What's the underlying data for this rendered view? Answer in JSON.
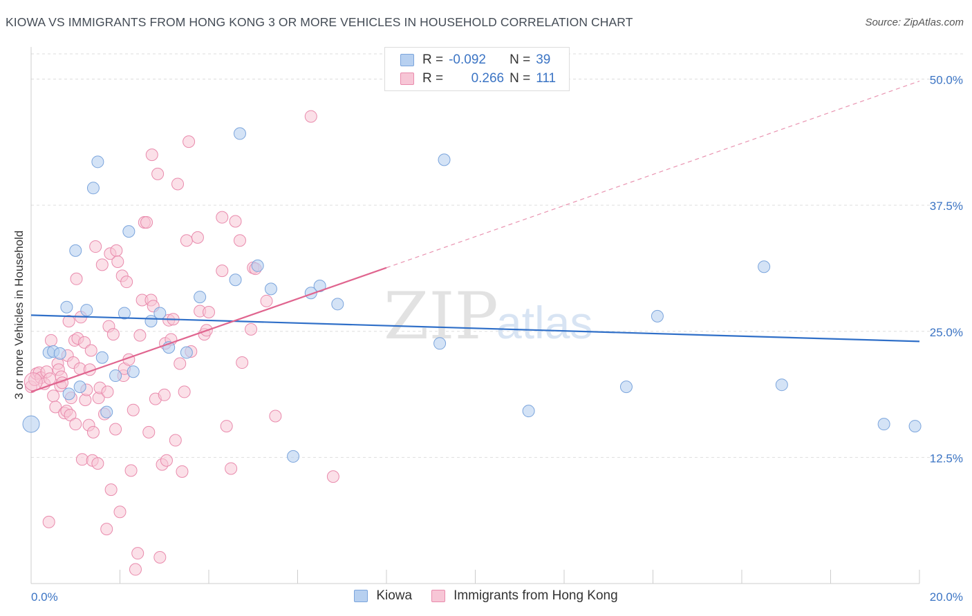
{
  "title": "KIOWA VS IMMIGRANTS FROM HONG KONG 3 OR MORE VEHICLES IN HOUSEHOLD CORRELATION CHART",
  "source": "Source: ZipAtlas.com",
  "watermark": {
    "zip": "ZIP",
    "atlas": "atlas"
  },
  "legend": {
    "r_label": "R =",
    "n_label": "N =",
    "rows": [
      {
        "r": "-0.092",
        "n": "39"
      },
      {
        "r": "0.266",
        "n": "111"
      }
    ]
  },
  "bottom_legend": [
    "Kiowa",
    "Immigrants from Hong Kong"
  ],
  "chart_data": {
    "type": "scatter",
    "title": "KIOWA VS IMMIGRANTS FROM HONG KONG 3 OR MORE VEHICLES IN HOUSEHOLD CORRELATION CHART",
    "xlabel": "",
    "ylabel": "3 or more Vehicles in Household",
    "xlim": [
      0,
      20
    ],
    "ylim": [
      0,
      52.5
    ],
    "x_tick_labels": [
      {
        "value": 0,
        "label": "0.0%"
      },
      {
        "value": 20,
        "label": "20.0%"
      }
    ],
    "y_tick_labels": [
      {
        "value": 12.5,
        "label": "12.5%"
      },
      {
        "value": 25,
        "label": "25.0%"
      },
      {
        "value": 37.5,
        "label": "37.5%"
      },
      {
        "value": 50,
        "label": "50.0%"
      }
    ],
    "x_minor_ticks": [
      0,
      2,
      4,
      6,
      8,
      10,
      12,
      14,
      16,
      18,
      20
    ],
    "grid": true,
    "colors": {
      "kiowa_fill": "#b7d0f0",
      "kiowa_stroke": "#7aa4dc",
      "kiowa_line": "#2f6fc8",
      "hk_fill": "#f7c6d6",
      "hk_stroke": "#e98aac",
      "hk_line": "#e0658f",
      "tick_label": "#3b74c4",
      "grid": "#dddddd"
    },
    "series": [
      {
        "name": "Kiowa",
        "R": -0.092,
        "N": 39,
        "trend": {
          "x0": 0,
          "y0": 26.6,
          "x1": 20,
          "y1": 24.0
        },
        "points": [
          [
            0,
            15.8
          ],
          [
            0.4,
            22.9
          ],
          [
            0.5,
            23.0
          ],
          [
            0.65,
            22.8
          ],
          [
            0.8,
            27.4
          ],
          [
            0.85,
            18.8
          ],
          [
            1.0,
            33.0
          ],
          [
            1.1,
            19.5
          ],
          [
            1.25,
            27.1
          ],
          [
            1.4,
            39.2
          ],
          [
            1.5,
            41.8
          ],
          [
            1.6,
            22.4
          ],
          [
            1.7,
            17.0
          ],
          [
            1.9,
            20.6
          ],
          [
            2.1,
            26.8
          ],
          [
            2.2,
            34.9
          ],
          [
            2.3,
            21.0
          ],
          [
            2.7,
            26.0
          ],
          [
            2.9,
            26.8
          ],
          [
            3.1,
            23.4
          ],
          [
            3.5,
            22.9
          ],
          [
            3.8,
            28.4
          ],
          [
            4.6,
            30.1
          ],
          [
            4.7,
            44.6
          ],
          [
            5.1,
            31.5
          ],
          [
            5.4,
            29.2
          ],
          [
            5.9,
            12.6
          ],
          [
            6.3,
            28.8
          ],
          [
            6.5,
            29.5
          ],
          [
            6.9,
            27.7
          ],
          [
            9.2,
            23.8
          ],
          [
            9.3,
            42.0
          ],
          [
            11.2,
            17.1
          ],
          [
            13.4,
            19.5
          ],
          [
            14.1,
            26.5
          ],
          [
            16.5,
            31.4
          ],
          [
            16.9,
            19.7
          ],
          [
            19.2,
            15.8
          ],
          [
            19.9,
            15.6
          ]
        ]
      },
      {
        "name": "Immigrants from Hong Kong",
        "R": 0.266,
        "N": 111,
        "trend": {
          "x0": 0,
          "y0": 19.0,
          "x1": 8.0,
          "y1": 31.3
        },
        "trend_dashed": {
          "x0": 8.0,
          "y0": 31.3,
          "x1": 20,
          "y1": 49.8
        },
        "points": [
          [
            0,
            19.5
          ],
          [
            0.08,
            20.2
          ],
          [
            0.12,
            20.8
          ],
          [
            0.18,
            20.9
          ],
          [
            0.22,
            20.4
          ],
          [
            0.3,
            19.8
          ],
          [
            0.35,
            21.0
          ],
          [
            0.4,
            6.1
          ],
          [
            0.42,
            20.3
          ],
          [
            0.45,
            24.1
          ],
          [
            0.5,
            18.6
          ],
          [
            0.55,
            17.5
          ],
          [
            0.6,
            21.8
          ],
          [
            0.62,
            21.2
          ],
          [
            0.66,
            19.6
          ],
          [
            0.68,
            20.5
          ],
          [
            0.7,
            19.9
          ],
          [
            0.75,
            16.9
          ],
          [
            0.8,
            17.1
          ],
          [
            0.82,
            22.6
          ],
          [
            0.85,
            26.0
          ],
          [
            0.88,
            16.7
          ],
          [
            0.9,
            18.4
          ],
          [
            0.95,
            21.9
          ],
          [
            0.98,
            24.1
          ],
          [
            1.0,
            15.8
          ],
          [
            1.02,
            30.2
          ],
          [
            1.05,
            24.3
          ],
          [
            1.1,
            21.3
          ],
          [
            1.12,
            26.4
          ],
          [
            1.15,
            12.3
          ],
          [
            1.2,
            23.9
          ],
          [
            1.22,
            18.2
          ],
          [
            1.25,
            19.2
          ],
          [
            1.3,
            15.7
          ],
          [
            1.32,
            21.2
          ],
          [
            1.35,
            23.1
          ],
          [
            1.38,
            12.2
          ],
          [
            1.4,
            15.0
          ],
          [
            1.45,
            33.4
          ],
          [
            1.5,
            11.9
          ],
          [
            1.52,
            18.4
          ],
          [
            1.55,
            19.4
          ],
          [
            1.6,
            31.6
          ],
          [
            1.65,
            16.8
          ],
          [
            1.7,
            5.4
          ],
          [
            1.72,
            19.0
          ],
          [
            1.75,
            25.5
          ],
          [
            1.78,
            32.7
          ],
          [
            1.8,
            9.3
          ],
          [
            1.85,
            24.7
          ],
          [
            1.9,
            15.3
          ],
          [
            1.92,
            33.0
          ],
          [
            1.95,
            31.9
          ],
          [
            2.0,
            7.1
          ],
          [
            2.05,
            30.5
          ],
          [
            2.08,
            20.6
          ],
          [
            2.1,
            21.3
          ],
          [
            2.15,
            29.9
          ],
          [
            2.2,
            22.2
          ],
          [
            2.25,
            11.2
          ],
          [
            2.3,
            17.2
          ],
          [
            2.35,
            1.4
          ],
          [
            2.4,
            3.0
          ],
          [
            2.45,
            24.6
          ],
          [
            2.5,
            28.1
          ],
          [
            2.55,
            35.8
          ],
          [
            2.6,
            35.8
          ],
          [
            2.65,
            15.0
          ],
          [
            2.7,
            28.1
          ],
          [
            2.72,
            42.5
          ],
          [
            2.75,
            27.5
          ],
          [
            2.8,
            18.3
          ],
          [
            2.85,
            40.6
          ],
          [
            2.9,
            2.6
          ],
          [
            2.95,
            11.8
          ],
          [
            3.0,
            18.7
          ],
          [
            3.02,
            23.8
          ],
          [
            3.05,
            12.2
          ],
          [
            3.1,
            26.1
          ],
          [
            3.15,
            24.2
          ],
          [
            3.2,
            26.2
          ],
          [
            3.25,
            14.2
          ],
          [
            3.3,
            39.6
          ],
          [
            3.35,
            21.8
          ],
          [
            3.4,
            11.1
          ],
          [
            3.45,
            19.0
          ],
          [
            3.5,
            34.0
          ],
          [
            3.55,
            43.8
          ],
          [
            3.6,
            23.0
          ],
          [
            3.75,
            34.3
          ],
          [
            3.8,
            27.0
          ],
          [
            3.9,
            24.7
          ],
          [
            3.95,
            25.1
          ],
          [
            4.0,
            26.9
          ],
          [
            4.3,
            36.3
          ],
          [
            4.4,
            15.6
          ],
          [
            4.5,
            11.4
          ],
          [
            4.6,
            35.9
          ],
          [
            4.7,
            34.0
          ],
          [
            4.75,
            21.9
          ],
          [
            4.95,
            25.2
          ],
          [
            5.0,
            31.3
          ],
          [
            5.05,
            31.2
          ],
          [
            5.3,
            28.0
          ],
          [
            5.5,
            16.6
          ],
          [
            6.3,
            46.3
          ],
          [
            6.8,
            10.6
          ],
          [
            4.3,
            31.0
          ]
        ]
      }
    ]
  }
}
